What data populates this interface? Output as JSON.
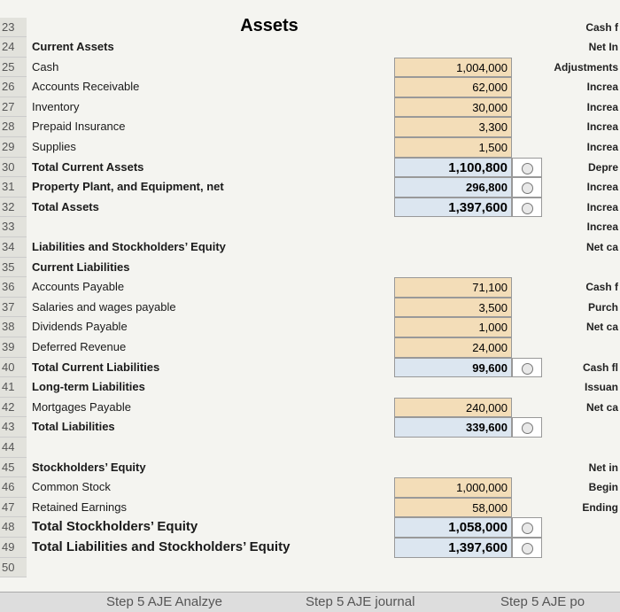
{
  "header": {
    "row": "23",
    "title": "Assets",
    "right": "Cash f"
  },
  "rows": [
    {
      "num": "24",
      "label": "Current Assets",
      "right": "Net In"
    },
    {
      "num": "25",
      "label": "Cash",
      "value": "1,004,000",
      "right": "Adjustments"
    },
    {
      "num": "26",
      "label": "Accounts Receivable",
      "value": "62,000",
      "right": "Increa"
    },
    {
      "num": "27",
      "label": "Inventory",
      "value": "30,000",
      "right": "Increa"
    },
    {
      "num": "28",
      "label": "Prepaid Insurance",
      "value": "3,300",
      "right": "Increa"
    },
    {
      "num": "29",
      "label": "Supplies",
      "value": "1,500",
      "right": "Increa"
    },
    {
      "num": "30",
      "label": "Total Current Assets",
      "value": "1,100,800",
      "check": true,
      "right": "Depre"
    },
    {
      "num": "31",
      "label": "Property Plant, and Equipment, net",
      "value": "296,800",
      "check": true,
      "right": "Increa"
    },
    {
      "num": "32",
      "label": "Total Assets",
      "value": "1,397,600",
      "check": true,
      "right": "Increa"
    },
    {
      "num": "33",
      "right": "Increa"
    },
    {
      "num": "34",
      "label": "Liabilities and Stockholders’ Equity",
      "right": "Net ca"
    },
    {
      "num": "35",
      "label": "Current Liabilities"
    },
    {
      "num": "36",
      "label": "Accounts Payable",
      "value": "71,100",
      "right": "Cash f"
    },
    {
      "num": "37",
      "label": "Salaries and wages payable",
      "value": "3,500",
      "right": "Purch"
    },
    {
      "num": "38",
      "label": "Dividends Payable",
      "value": "1,000",
      "right": "Net ca"
    },
    {
      "num": "39",
      "label": "Deferred Revenue",
      "value": "24,000"
    },
    {
      "num": "40",
      "label": "Total Current Liabilities",
      "value": "99,600",
      "check": true,
      "right": "Cash fl"
    },
    {
      "num": "41",
      "label": "Long-term Liabilities",
      "right": "Issuan"
    },
    {
      "num": "42",
      "label": "Mortgages Payable",
      "value": "240,000",
      "right": "Net ca"
    },
    {
      "num": "43",
      "label": "Total Liabilities",
      "value": "339,600",
      "check": true
    },
    {
      "num": "44"
    },
    {
      "num": "45",
      "label": "Stockholders’ Equity",
      "right": "Net in"
    },
    {
      "num": "46",
      "label": "Common Stock",
      "value": "1,000,000",
      "right": "Begin"
    },
    {
      "num": "47",
      "label": "Retained Earnings",
      "value": "58,000",
      "right": "Ending"
    },
    {
      "num": "48",
      "label": "Total Stockholders’ Equity",
      "value": "1,058,000",
      "check": true
    },
    {
      "num": "49",
      "label": "Total Liabilities and Stockholders’ Equity",
      "value": "1,397,600",
      "check": true
    },
    {
      "num": "50"
    }
  ],
  "tabs": [
    "Step 5 AJE Analzye",
    "Step 5 AJE journal",
    "Step 5 AJE po"
  ]
}
